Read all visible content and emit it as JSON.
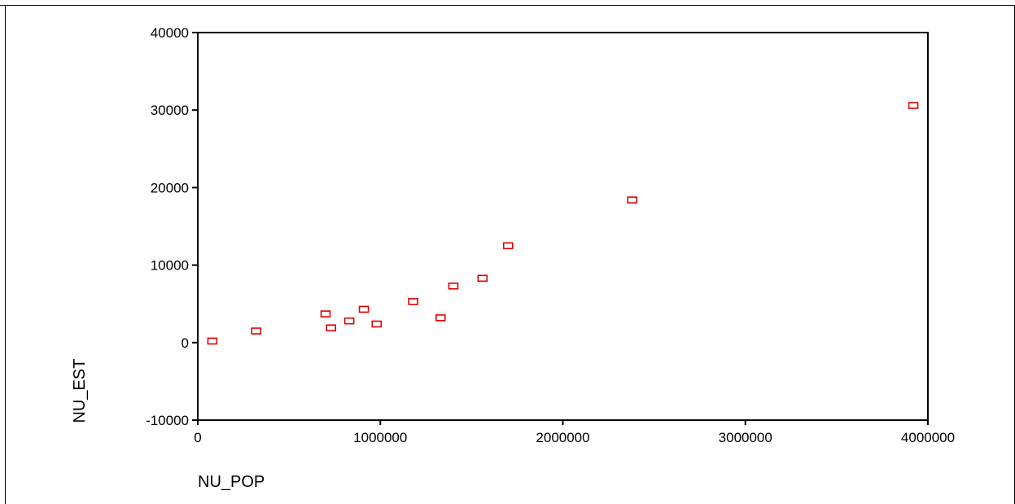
{
  "chart_data": {
    "type": "scatter",
    "title": "",
    "xlabel": "NU_POP",
    "ylabel": "NU_EST",
    "xlim": [
      0,
      4000000
    ],
    "ylim": [
      -10000,
      40000
    ],
    "x_ticks": [
      0,
      1000000,
      2000000,
      3000000,
      4000000
    ],
    "x_tick_labels": [
      "0",
      "1000000",
      "2000000",
      "3000000",
      "4000000"
    ],
    "y_ticks": [
      -10000,
      0,
      10000,
      20000,
      30000,
      40000
    ],
    "y_tick_labels": [
      "-10000",
      "0",
      "10000",
      "20000",
      "30000",
      "40000"
    ],
    "grid": false,
    "marker": "open-square",
    "marker_color": "#e00000",
    "points": [
      {
        "x": 80000,
        "y": 200
      },
      {
        "x": 320000,
        "y": 1500
      },
      {
        "x": 700000,
        "y": 3700
      },
      {
        "x": 730000,
        "y": 1900
      },
      {
        "x": 830000,
        "y": 2800
      },
      {
        "x": 910000,
        "y": 4300
      },
      {
        "x": 980000,
        "y": 2400
      },
      {
        "x": 1180000,
        "y": 5300
      },
      {
        "x": 1330000,
        "y": 3200
      },
      {
        "x": 1400000,
        "y": 7300
      },
      {
        "x": 1560000,
        "y": 8300
      },
      {
        "x": 1700000,
        "y": 12500
      },
      {
        "x": 2380000,
        "y": 18400
      },
      {
        "x": 3920000,
        "y": 30600
      }
    ]
  }
}
